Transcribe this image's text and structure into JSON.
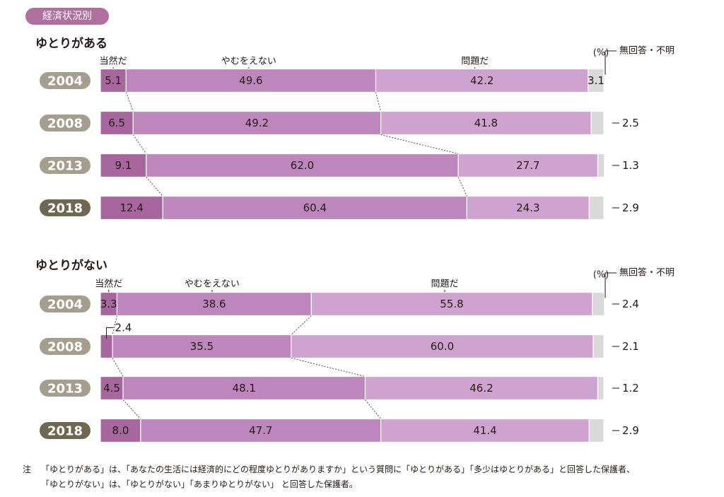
{
  "tag": "経済状況別",
  "colors": {
    "natural": "#a8669f",
    "unavoidable": "#bd86bd",
    "problem": "#cfa3cf",
    "no_answer": "#d9d9d9",
    "year_label_bg": "#a59d8e",
    "year_label_bg_dark": "#6e6751"
  },
  "chart_data": [
    {
      "type": "stacked-bar-100",
      "title": "ゆとりがある",
      "unit": "(%)",
      "series_labels": [
        "当然だ",
        "やむをえない",
        "問題だ",
        "無回答・不明"
      ],
      "rows": [
        {
          "year": "2004",
          "values": [
            5.1,
            49.6,
            42.2,
            3.1
          ],
          "labels": [
            "5.1",
            "49.6",
            "42.2",
            "3.1"
          ]
        },
        {
          "year": "2008",
          "values": [
            6.5,
            49.2,
            41.8,
            2.5
          ],
          "labels": [
            "6.5",
            "49.2",
            "41.8",
            "2.5"
          ]
        },
        {
          "year": "2013",
          "values": [
            9.1,
            62.0,
            27.7,
            1.3
          ],
          "labels": [
            "9.1",
            "62.0",
            "27.7",
            "1.3"
          ]
        },
        {
          "year": "2018",
          "values": [
            12.4,
            60.4,
            24.3,
            2.9
          ],
          "labels": [
            "12.4",
            "60.4",
            "24.3",
            "2.9"
          ]
        }
      ]
    },
    {
      "type": "stacked-bar-100",
      "title": "ゆとりがない",
      "unit": "(%)",
      "series_labels": [
        "当然だ",
        "やむをえない",
        "問題だ",
        "無回答・不明"
      ],
      "rows": [
        {
          "year": "2004",
          "values": [
            3.3,
            38.6,
            55.8,
            2.4
          ],
          "labels": [
            "3.3",
            "38.6",
            "55.8",
            "2.4"
          ]
        },
        {
          "year": "2008",
          "values": [
            2.4,
            35.5,
            60.0,
            2.1
          ],
          "labels": [
            "2.4",
            "35.5",
            "60.0",
            "2.1"
          ]
        },
        {
          "year": "2013",
          "values": [
            4.5,
            48.1,
            46.2,
            1.2
          ],
          "labels": [
            "4.5",
            "48.1",
            "46.2",
            "1.2"
          ]
        },
        {
          "year": "2018",
          "values": [
            8.0,
            47.7,
            41.4,
            2.9
          ],
          "labels": [
            "8.0",
            "47.7",
            "41.4",
            "2.9"
          ]
        }
      ]
    }
  ],
  "note": {
    "mark": "注",
    "line1": "「ゆとりがある」は、「あなたの生活には経済的にどの程度ゆとりがありますか」という質問に「ゆとりがある」「多少はゆとりがある」と回答した保護者、",
    "line2": "「ゆとりがない」は、「ゆとりがない」「あまりゆとりがない」 と回答した保護者。"
  }
}
